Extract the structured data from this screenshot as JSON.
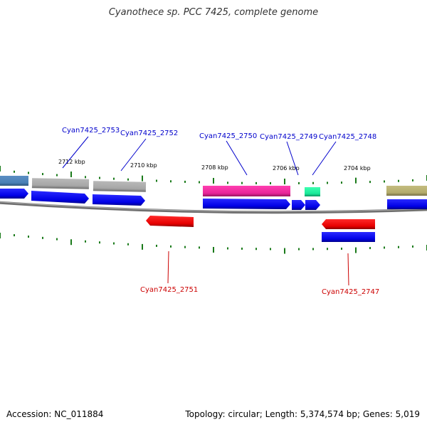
{
  "title": "Cyanothece sp. PCC 7425, complete genome",
  "footer": {
    "accession": "Accession: NC_011884",
    "topology": "Topology: circular; Length: 5,374,574 bp; Genes: 5,019"
  },
  "colors": {
    "forward_label": "#0000cc",
    "reverse_label": "#cc0000",
    "tick": "#1a7a1a",
    "backbone": "#808080"
  },
  "ticks": {
    "labels": [
      "2712 kbp",
      "2710 kbp",
      "2708 kbp",
      "2706 kbp",
      "2704 kbp"
    ]
  },
  "genes": {
    "top": [
      {
        "name": "Cyan7425_2753"
      },
      {
        "name": "Cyan7425_2752"
      },
      {
        "name": "Cyan7425_2750"
      },
      {
        "name": "Cyan7425_2749"
      },
      {
        "name": "Cyan7425_2748"
      }
    ],
    "bottom": [
      {
        "name": "Cyan7425_2751"
      },
      {
        "name": "Cyan7425_2747"
      }
    ]
  }
}
